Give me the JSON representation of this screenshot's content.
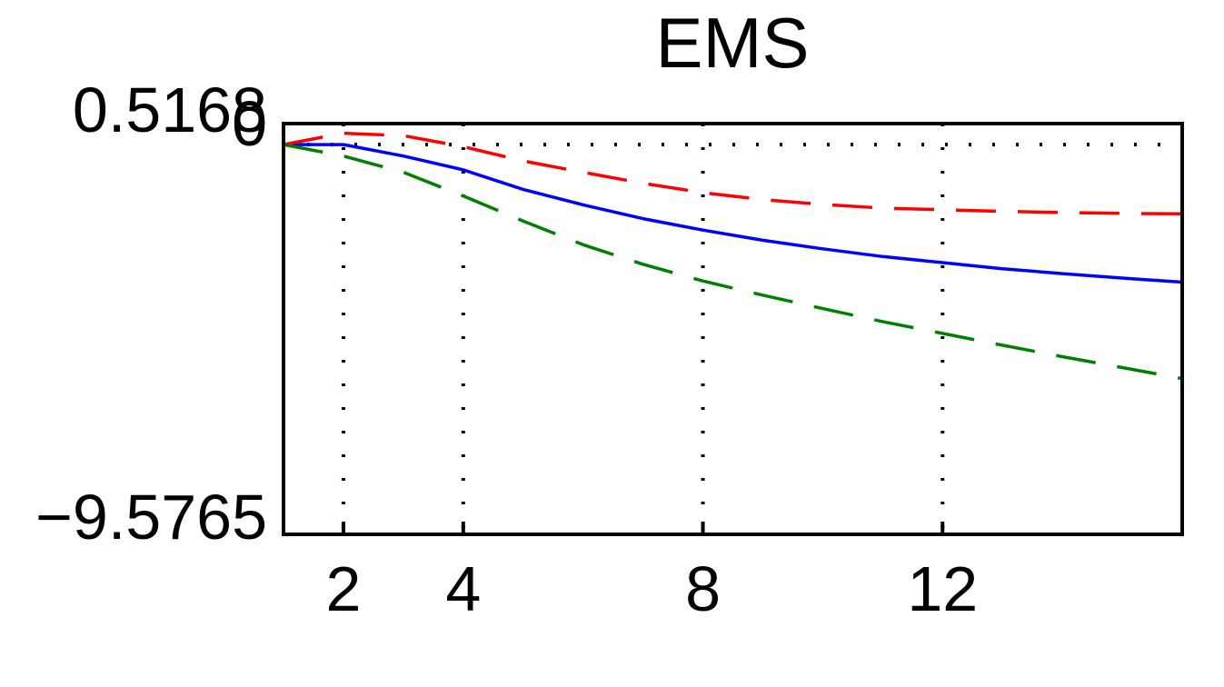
{
  "chart_data": {
    "type": "line",
    "title": "EMS",
    "xlabel": "",
    "ylabel": "",
    "xlim": [
      1,
      16
    ],
    "ylim": [
      -9.5765,
      0.5168
    ],
    "grid": true,
    "x_ticks": [
      2,
      4,
      8,
      12
    ],
    "x_tick_labels": [
      "2",
      "4",
      "8",
      "12"
    ],
    "y_tick_labels": {
      "top": "0.5168",
      "zero": "0",
      "bottom": "−9.5765"
    },
    "y_ref_line": 0,
    "x": [
      1,
      2,
      3,
      4,
      5,
      6,
      7,
      8,
      9,
      10,
      11,
      12,
      13,
      14,
      15,
      16
    ],
    "series": [
      {
        "color": "#0000ff",
        "style": "solid",
        "values": [
          0.0,
          0.0,
          -0.28,
          -0.62,
          -1.1,
          -1.48,
          -1.82,
          -2.1,
          -2.35,
          -2.56,
          -2.75,
          -2.9,
          -3.05,
          -3.17,
          -3.28,
          -3.38
        ]
      },
      {
        "color": "#ff0000",
        "style": "dashed",
        "values": [
          0.0,
          0.28,
          0.22,
          -0.05,
          -0.4,
          -0.68,
          -0.95,
          -1.18,
          -1.35,
          -1.47,
          -1.56,
          -1.6,
          -1.64,
          -1.67,
          -1.69,
          -1.7
        ]
      },
      {
        "color": "#008000",
        "style": "dashed",
        "values": [
          0.0,
          -0.28,
          -0.68,
          -1.26,
          -1.88,
          -2.46,
          -2.94,
          -3.35,
          -3.7,
          -4.03,
          -4.35,
          -4.64,
          -4.93,
          -5.21,
          -5.48,
          -5.75
        ]
      }
    ]
  }
}
